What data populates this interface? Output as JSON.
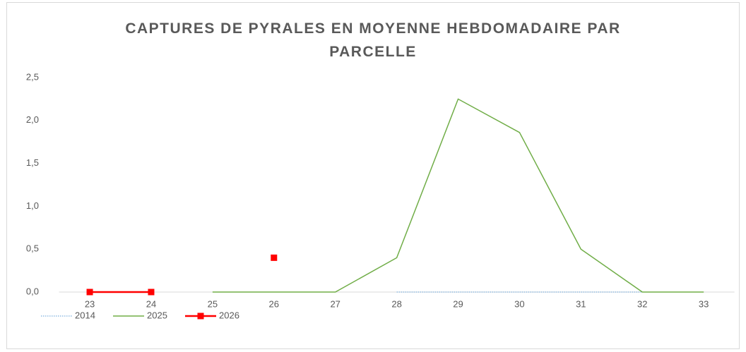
{
  "chart_data": {
    "type": "line",
    "title": "CAPTURES DE PYRALES EN MOYENNE HEBDOMADAIRE PAR PARCELLE",
    "categories": [
      "23",
      "24",
      "25",
      "26",
      "27",
      "28",
      "29",
      "30",
      "31",
      "32",
      "33"
    ],
    "series": [
      {
        "name": "2014",
        "color": "#5b9bd5",
        "values": [
          null,
          null,
          null,
          null,
          null,
          0,
          0,
          0,
          0,
          0,
          null
        ]
      },
      {
        "name": "2025",
        "color": "#70ad47",
        "values": [
          null,
          null,
          0,
          0,
          0,
          0.4,
          2.25,
          1.86,
          0.5,
          0,
          0
        ]
      },
      {
        "name": "2026",
        "color": "#ff0000",
        "values": [
          0,
          0,
          null,
          0.4,
          null,
          null,
          null,
          null,
          null,
          null,
          null
        ]
      }
    ],
    "ylim": [
      0,
      2.5
    ],
    "yticks": [
      {
        "value": 0,
        "label": "0,0"
      },
      {
        "value": 0.5,
        "label": "0,5"
      },
      {
        "value": 1,
        "label": "1,0"
      },
      {
        "value": 1.5,
        "label": "1,5"
      },
      {
        "value": 2,
        "label": "2,0"
      },
      {
        "value": 2.5,
        "label": "2,5"
      }
    ],
    "grid": false,
    "legend": "bottom-left"
  }
}
